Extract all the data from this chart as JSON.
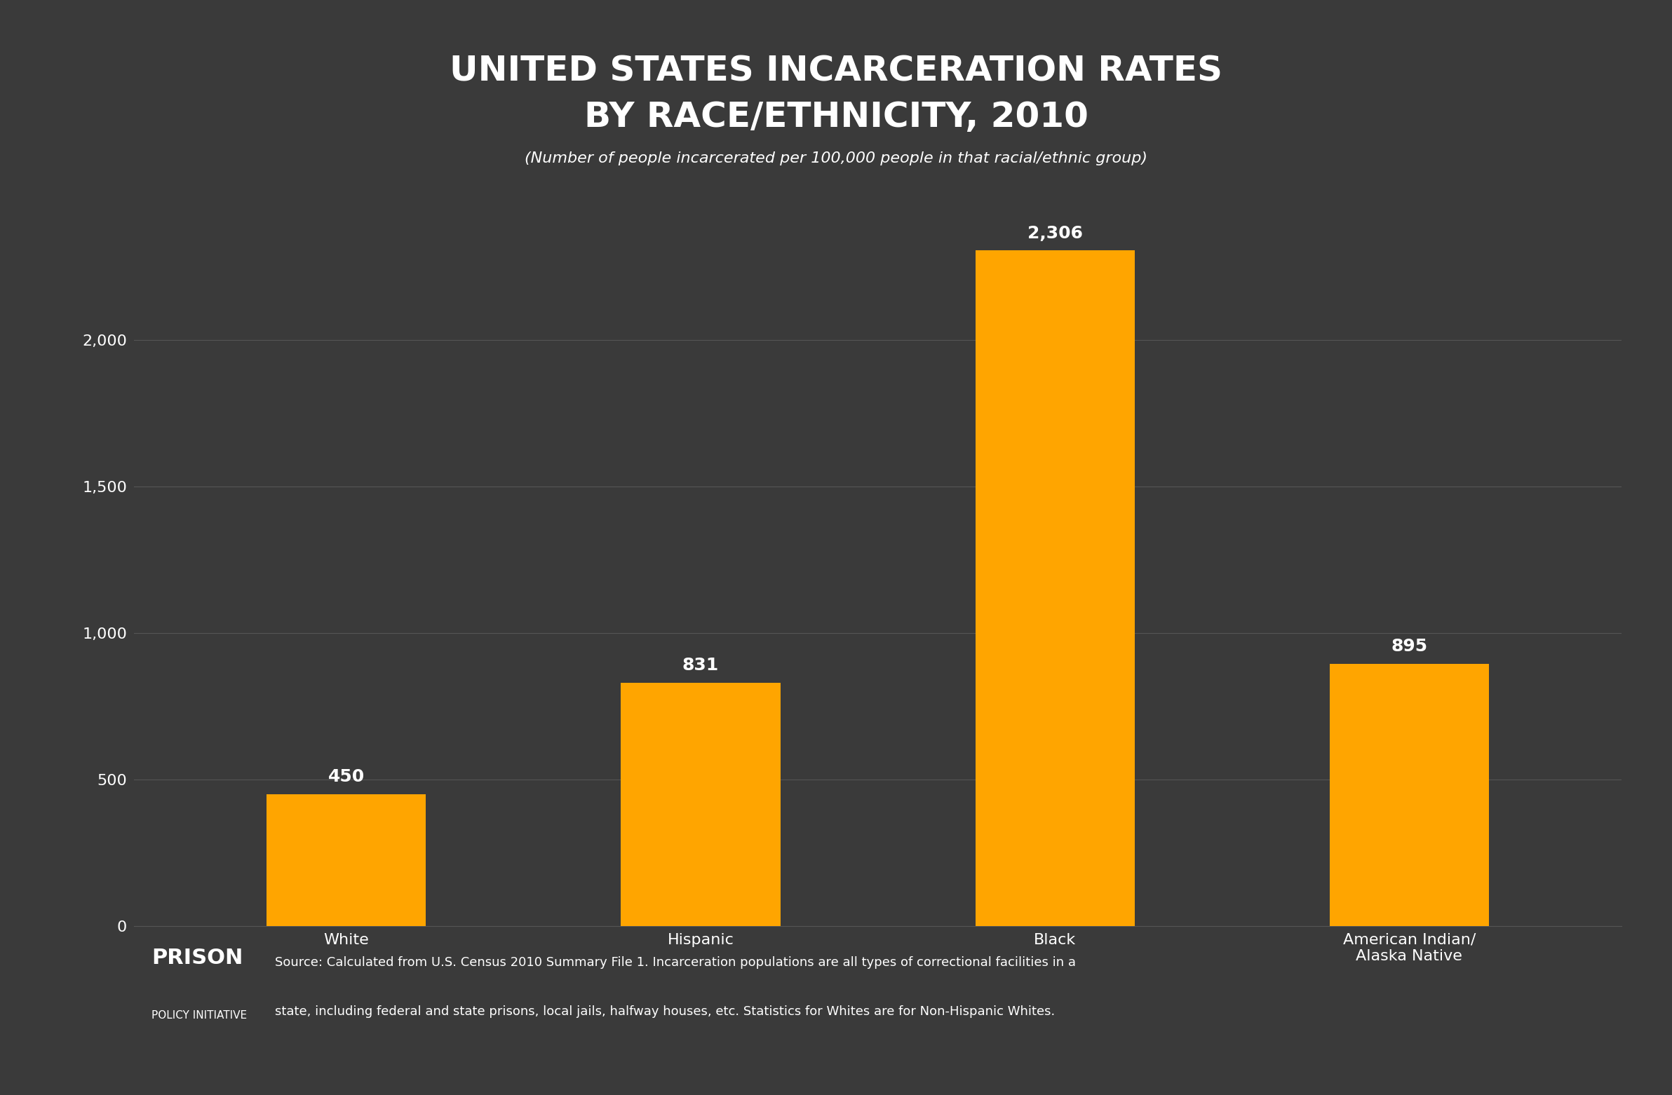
{
  "title_line1": "UNITED STATES INCARCERATION RATES",
  "title_line2": "BY RACE/ETHNICITY, 2010",
  "subtitle": "(Number of people incarcerated per 100,000 people in that racial/ethnic group)",
  "categories": [
    "White",
    "Hispanic",
    "Black",
    "American Indian/\nAlaska Native"
  ],
  "values": [
    450,
    831,
    2306,
    895
  ],
  "bar_color": "#FFA500",
  "background_color": "#3a3a3a",
  "text_color": "#ffffff",
  "grid_color": "#555555",
  "yticks": [
    0,
    500,
    1000,
    1500,
    2000
  ],
  "ylim": [
    0,
    2600
  ],
  "source_text_line1": "Source: Calculated from U.S. Census 2010 Summary File 1. Incarceration populations are all types of correctional facilities in a",
  "source_text_line2": "state, including federal and state prisons, local jails, halfway houses, etc. Statistics for Whites are for Non-Hispanic Whites.",
  "logo_text_big": "PRISON",
  "logo_text_small": "POLICY INITIATIVE",
  "title_fontsize": 36,
  "subtitle_fontsize": 16,
  "bar_label_fontsize": 18,
  "xtick_fontsize": 16,
  "ytick_fontsize": 16,
  "source_fontsize": 13,
  "logo_big_fontsize": 22,
  "logo_small_fontsize": 11
}
